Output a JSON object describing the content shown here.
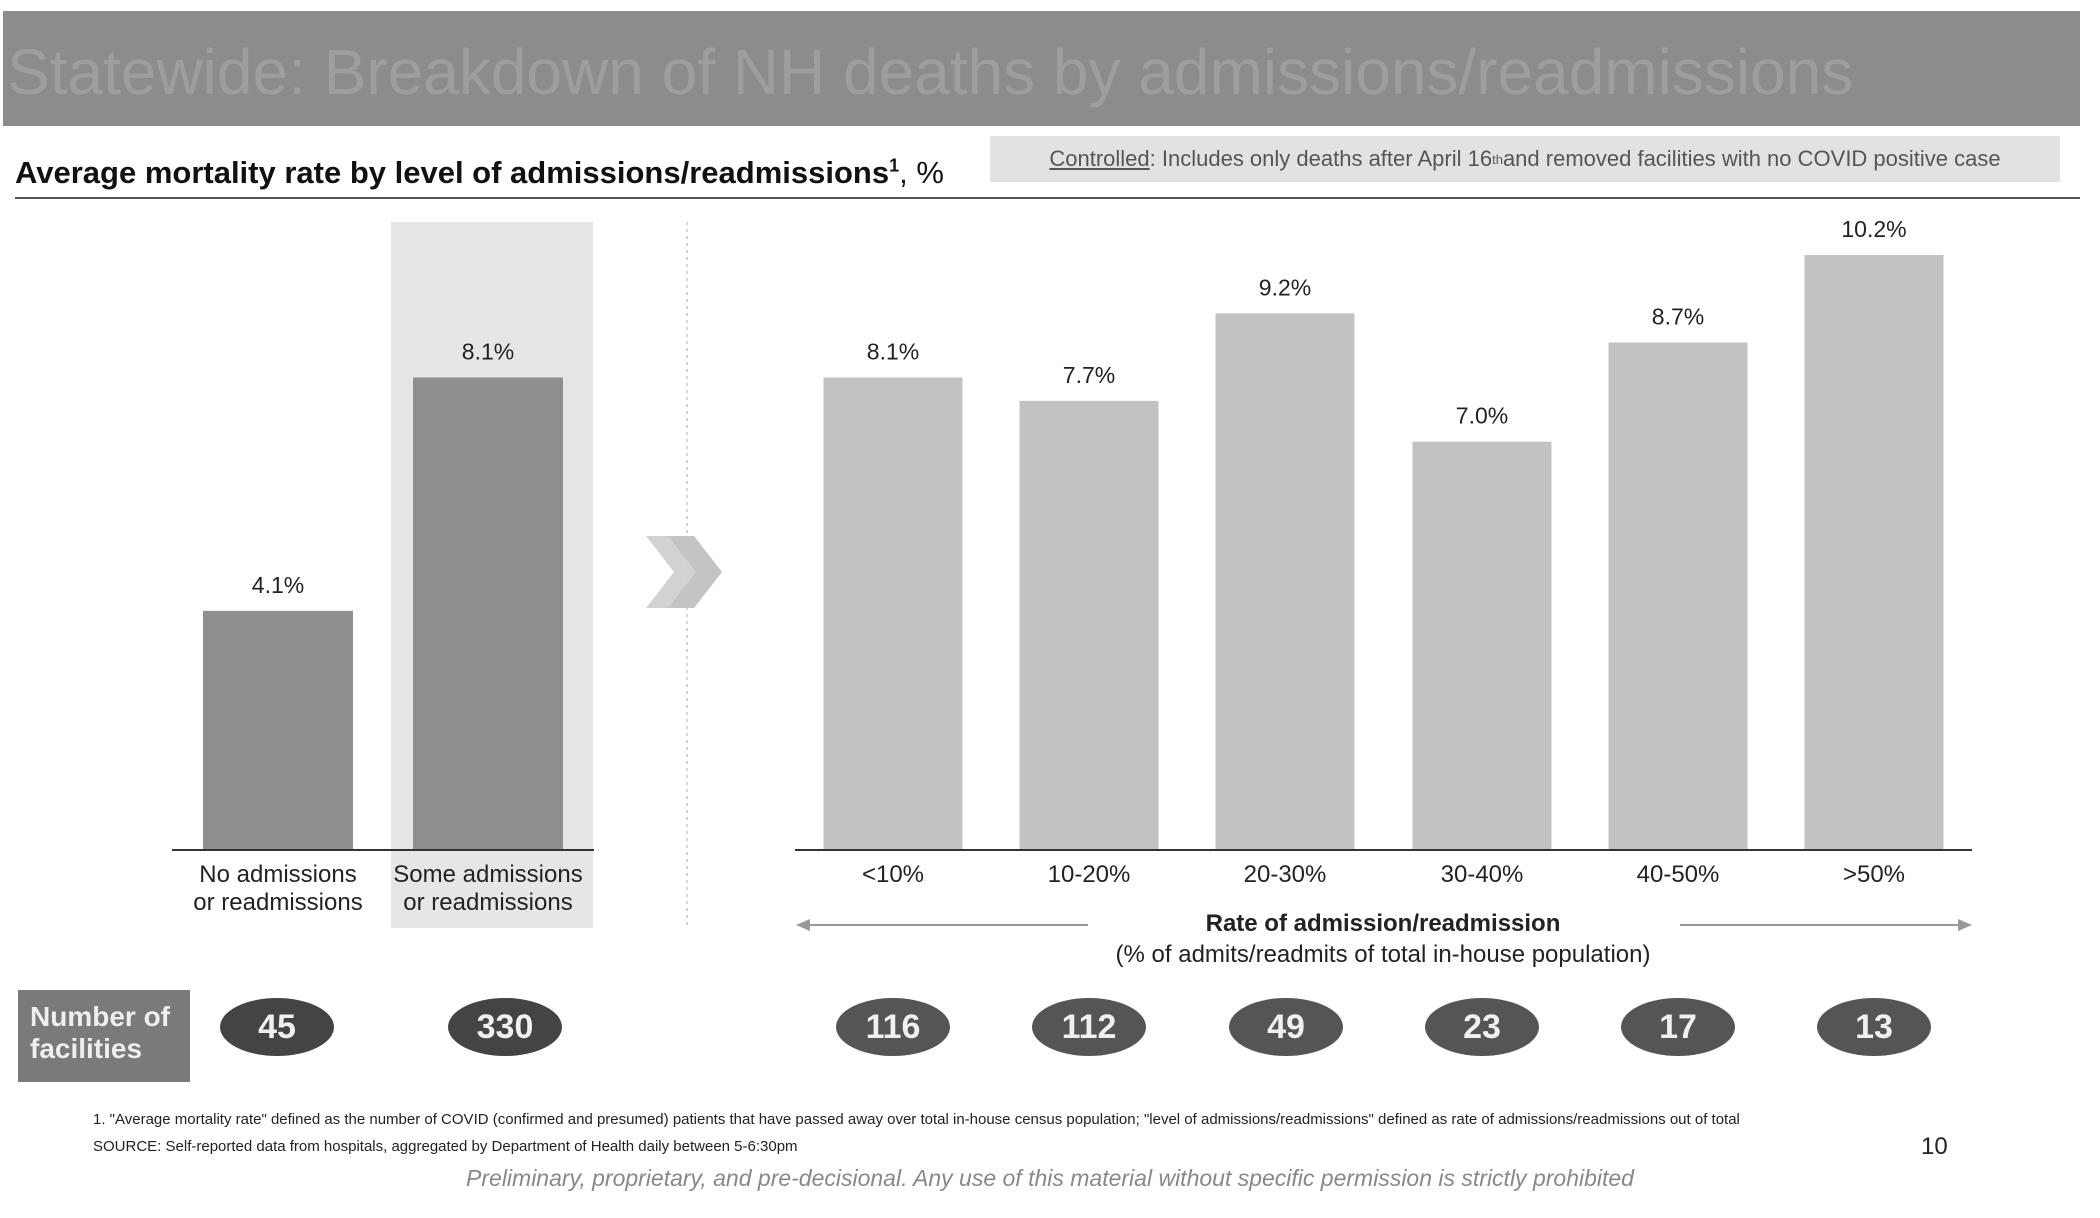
{
  "header": {
    "title": "Statewide: Breakdown of NH deaths by admissions/readmissions",
    "subtitle": "Average mortality rate by level of admissions/readmissions",
    "subtitle_sup": "1",
    "subtitle_unit": ", %",
    "note_controlled": "Controlled",
    "note_text_before": ": Includes only deaths after April 16",
    "note_sup": "th",
    "note_text_after": " and removed facilities with no COVID positive case"
  },
  "chart_data": [
    {
      "type": "bar",
      "categories": [
        "No admissions or readmissions",
        "Some admissions or readmissions"
      ],
      "values": [
        4.1,
        8.1
      ],
      "data_labels": [
        "4.1%",
        "8.1%"
      ],
      "highlighted_category": "Some admissions or readmissions",
      "ylim": [
        0,
        10.2
      ]
    },
    {
      "type": "bar",
      "categories": [
        "<10%",
        "10-20%",
        "20-30%",
        "30-40%",
        "40-50%",
        ">50%"
      ],
      "values": [
        8.1,
        7.7,
        9.2,
        7.0,
        8.7,
        10.2
      ],
      "data_labels": [
        "8.1%",
        "7.7%",
        "9.2%",
        "7.0%",
        "8.7%",
        "10.2%"
      ],
      "xlabel": "Rate of admission/readmission",
      "xlabel_sub": "(% of admits/readmits of total in-house population)",
      "ylim": [
        0,
        10.2
      ]
    }
  ],
  "left_categories": [
    {
      "line1": "No admissions",
      "line2": "or readmissions"
    },
    {
      "line1": "Some admissions",
      "line2": "or readmissions"
    }
  ],
  "facilities": {
    "label_line1": "Number of",
    "label_line2": "facilities",
    "left_counts": [
      "45",
      "330"
    ],
    "right_counts": [
      "116",
      "112",
      "49",
      "23",
      "17",
      "13"
    ]
  },
  "footer": {
    "footnote1": "1.    \"Average mortality rate\" defined as the number of COVID (confirmed and presumed) patients that have passed away over total in-house census population; \"level of admissions/readmissions\" defined as rate of admissions/readmissions out of total",
    "source": "SOURCE: Self-reported data from hospitals, aggregated by Department of Health daily between 5-6:30pm",
    "page_number": "10",
    "disclaimer": "Preliminary, proprietary, and pre-decisional. Any use of this material without specific permission is strictly prohibited"
  },
  "colors": {
    "title_bar": "#8c8c8c",
    "left_bars": "#8f8f8f",
    "right_bars": "#c2c2c2",
    "highlight_panel": "#e6e6e6",
    "pill_dark": "#444444",
    "pill_mid": "#555555"
  }
}
